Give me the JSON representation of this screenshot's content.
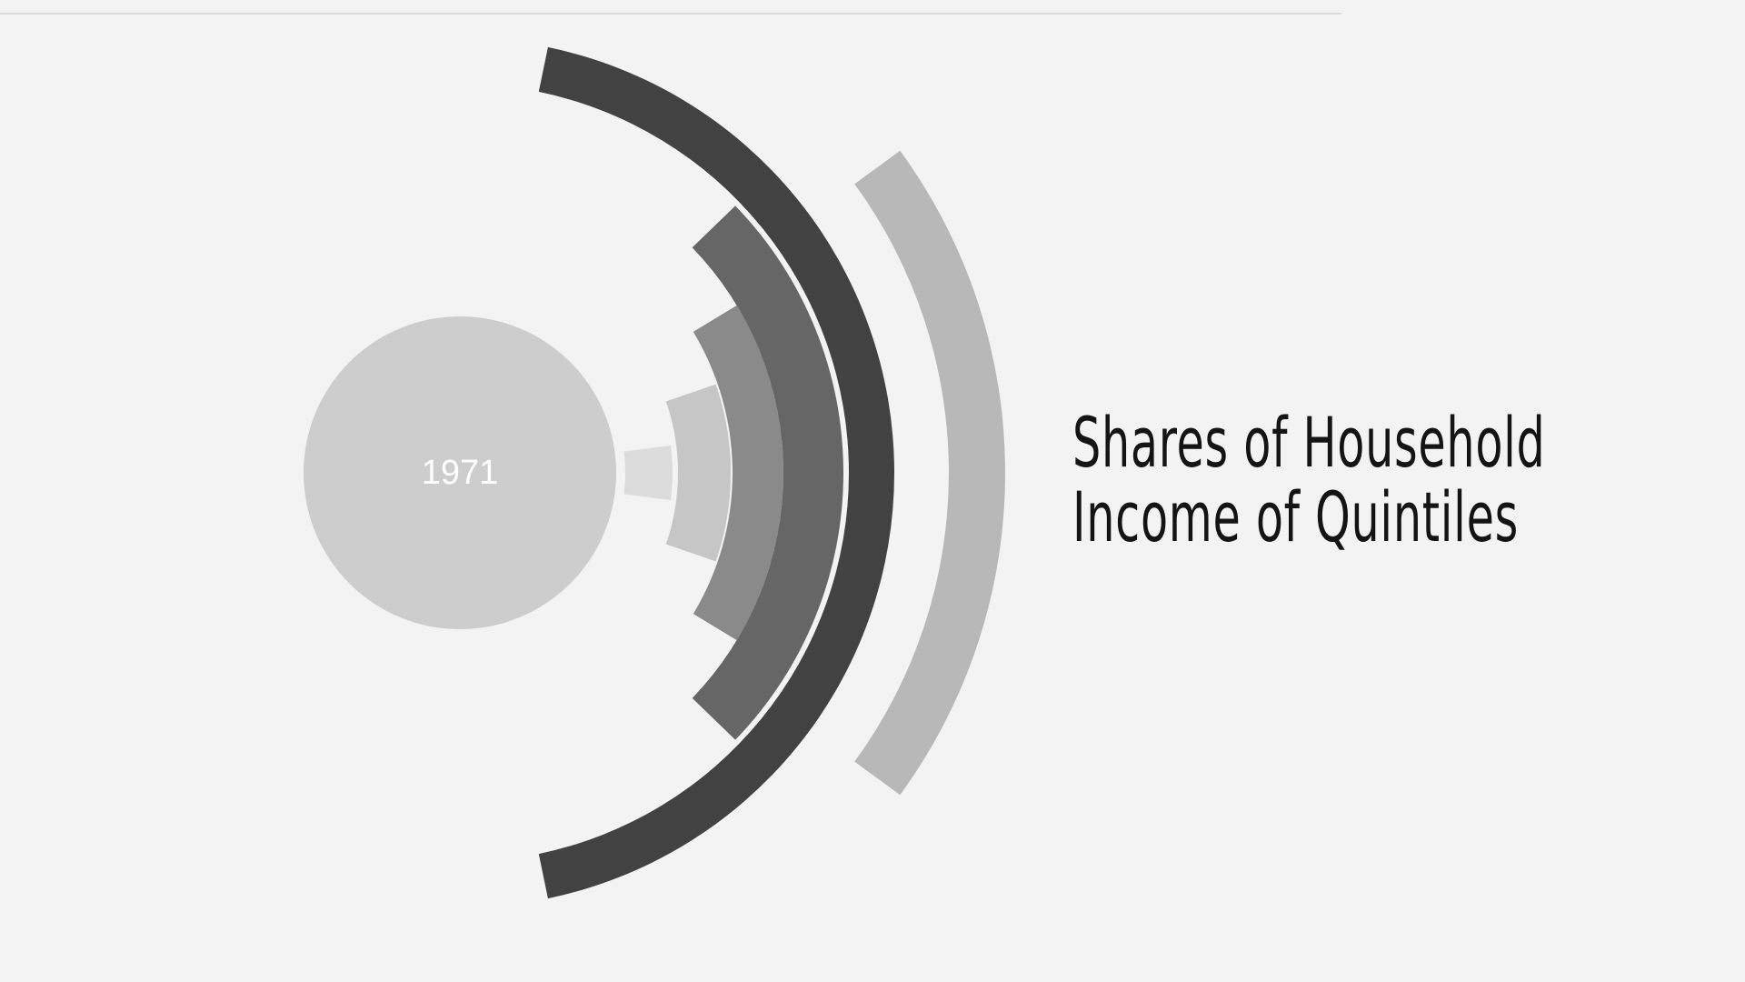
{
  "chart_data": {
    "type": "radial-arc",
    "title_line_1": "Shares of Household",
    "title_line_2": "Income of Quintiles",
    "year": "1971",
    "series": [
      {
        "value": 4.1,
        "color": "#dcdcdc"
      },
      {
        "value": 10.6,
        "color": "#c6c6c6"
      },
      {
        "value": 17.3,
        "color": "#8a8a8a"
      },
      {
        "value": 24.5,
        "color": "#666666"
      },
      {
        "value": 43.5,
        "color": "#424242"
      },
      {
        "value": 20.1,
        "color": "#b8b8b8"
      }
    ],
    "center_color": "#cdcdcd"
  }
}
